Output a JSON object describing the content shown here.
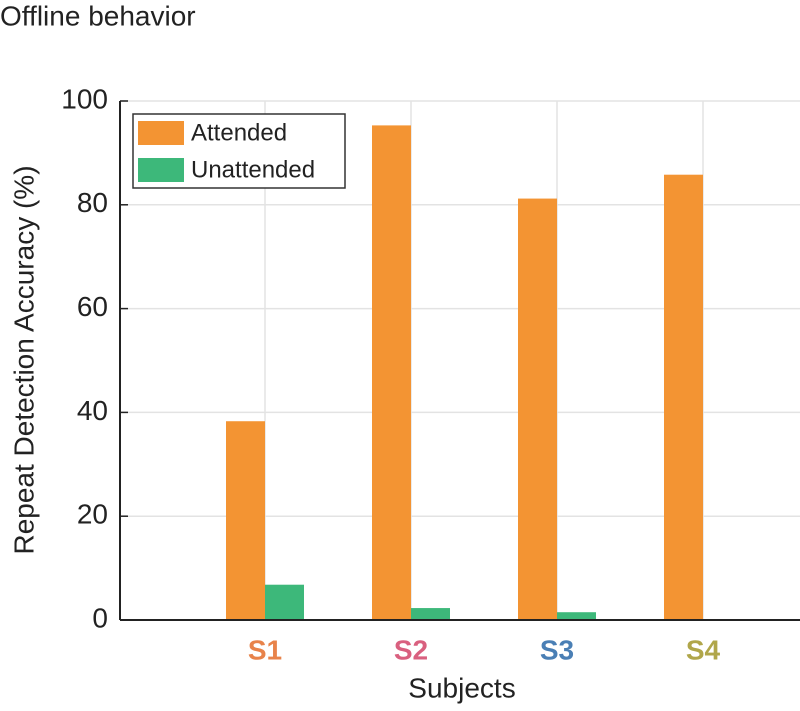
{
  "chart_data": {
    "type": "bar",
    "title": "Offline behavior",
    "xlabel": "Subjects",
    "ylabel": "Repeat Detection Accuracy (%)",
    "categories": [
      "S1",
      "S2",
      "S3",
      "S4"
    ],
    "category_colors": [
      "#e8834a",
      "#d9607f",
      "#4a7fb5",
      "#b0a64a"
    ],
    "series": [
      {
        "name": "Attended",
        "color": "#f39433",
        "values": [
          38.3,
          95.3,
          81.2,
          85.8
        ]
      },
      {
        "name": "Unattended",
        "color": "#3db87a",
        "values": [
          6.8,
          2.3,
          1.5,
          0
        ]
      }
    ],
    "ylim": [
      0,
      100
    ],
    "yticks": [
      0,
      20,
      40,
      60,
      80,
      100
    ],
    "grid": true,
    "legend": "upper left"
  }
}
